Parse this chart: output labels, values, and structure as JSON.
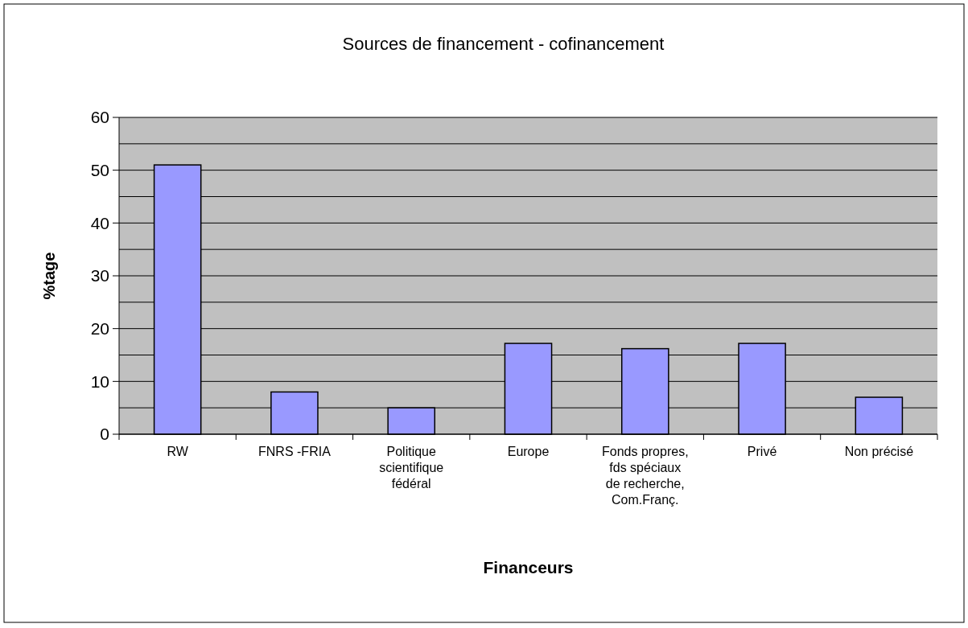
{
  "chart_data": {
    "type": "bar",
    "title": "Sources de financement - cofinancement",
    "xlabel": "Financeurs",
    "ylabel": "%tage",
    "categories": [
      "RW",
      "FNRS -FRIA",
      "Politique scientifique fédéral",
      "Europe",
      "Fonds propres, fds spéciaux de recherche, Com.Franç.",
      "Privé",
      "Non précisé"
    ],
    "values": [
      51,
      8,
      5,
      17.2,
      16.2,
      17.2,
      7
    ],
    "color": "#9999ff",
    "ylim": [
      0,
      60
    ],
    "yticks": [
      0,
      {
        "value": 5,
        "label": null
      },
      10,
      {
        "value": 15,
        "label": null
      },
      20,
      {
        "value": 25,
        "label": null
      },
      30,
      {
        "value": 35,
        "label": null
      },
      40,
      {
        "value": 45,
        "label": null
      },
      50,
      {
        "value": 55,
        "label": null
      },
      60
    ],
    "grid": "y"
  }
}
